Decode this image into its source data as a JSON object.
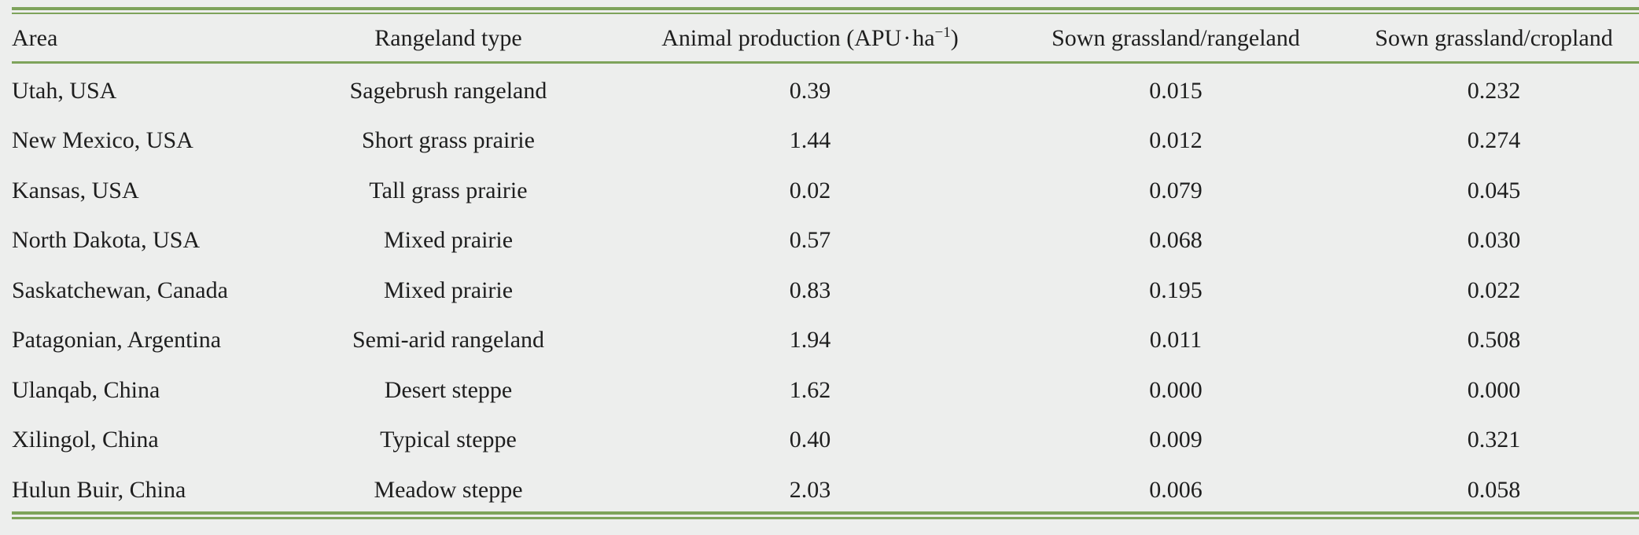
{
  "table": {
    "columns": {
      "area": "Area",
      "rangeland_type": "Rangeland type",
      "animal_production_label": "Animal production",
      "animal_production_unit_prefix": "(APU",
      "animal_production_unit_dot": "·",
      "animal_production_unit_ha": "ha",
      "animal_production_unit_exp": "−1",
      "animal_production_unit_suffix": ")",
      "sown_rangeland": "Sown grassland/rangeland",
      "sown_cropland": "Sown grassland/cropland"
    },
    "rows": [
      {
        "area": "Utah, USA",
        "rangeland_type": "Sagebrush rangeland",
        "animal_production": "0.39",
        "sown_rangeland": "0.015",
        "sown_cropland": "0.232"
      },
      {
        "area": "New Mexico, USA",
        "rangeland_type": "Short grass prairie",
        "animal_production": "1.44",
        "sown_rangeland": "0.012",
        "sown_cropland": "0.274"
      },
      {
        "area": "Kansas, USA",
        "rangeland_type": "Tall grass prairie",
        "animal_production": "0.02",
        "sown_rangeland": "0.079",
        "sown_cropland": "0.045"
      },
      {
        "area": "North Dakota, USA",
        "rangeland_type": "Mixed prairie",
        "animal_production": "0.57",
        "sown_rangeland": "0.068",
        "sown_cropland": "0.030"
      },
      {
        "area": "Saskatchewan, Canada",
        "rangeland_type": "Mixed prairie",
        "animal_production": "0.83",
        "sown_rangeland": "0.195",
        "sown_cropland": "0.022"
      },
      {
        "area": "Patagonian, Argentina",
        "rangeland_type": "Semi-arid rangeland",
        "animal_production": "1.94",
        "sown_rangeland": "0.011",
        "sown_cropland": "0.508"
      },
      {
        "area": "Ulanqab, China",
        "rangeland_type": "Desert steppe",
        "animal_production": "1.62",
        "sown_rangeland": "0.000",
        "sown_cropland": "0.000"
      },
      {
        "area": "Xilingol, China",
        "rangeland_type": "Typical steppe",
        "animal_production": "0.40",
        "sown_rangeland": "0.009",
        "sown_cropland": "0.321"
      },
      {
        "area": "Hulun Buir, China",
        "rangeland_type": "Meadow steppe",
        "animal_production": "2.03",
        "sown_rangeland": "0.006",
        "sown_cropland": "0.058"
      }
    ]
  },
  "colors": {
    "rule": "#7ea35b",
    "background": "#edeeed",
    "text": "#1e1e1e"
  }
}
